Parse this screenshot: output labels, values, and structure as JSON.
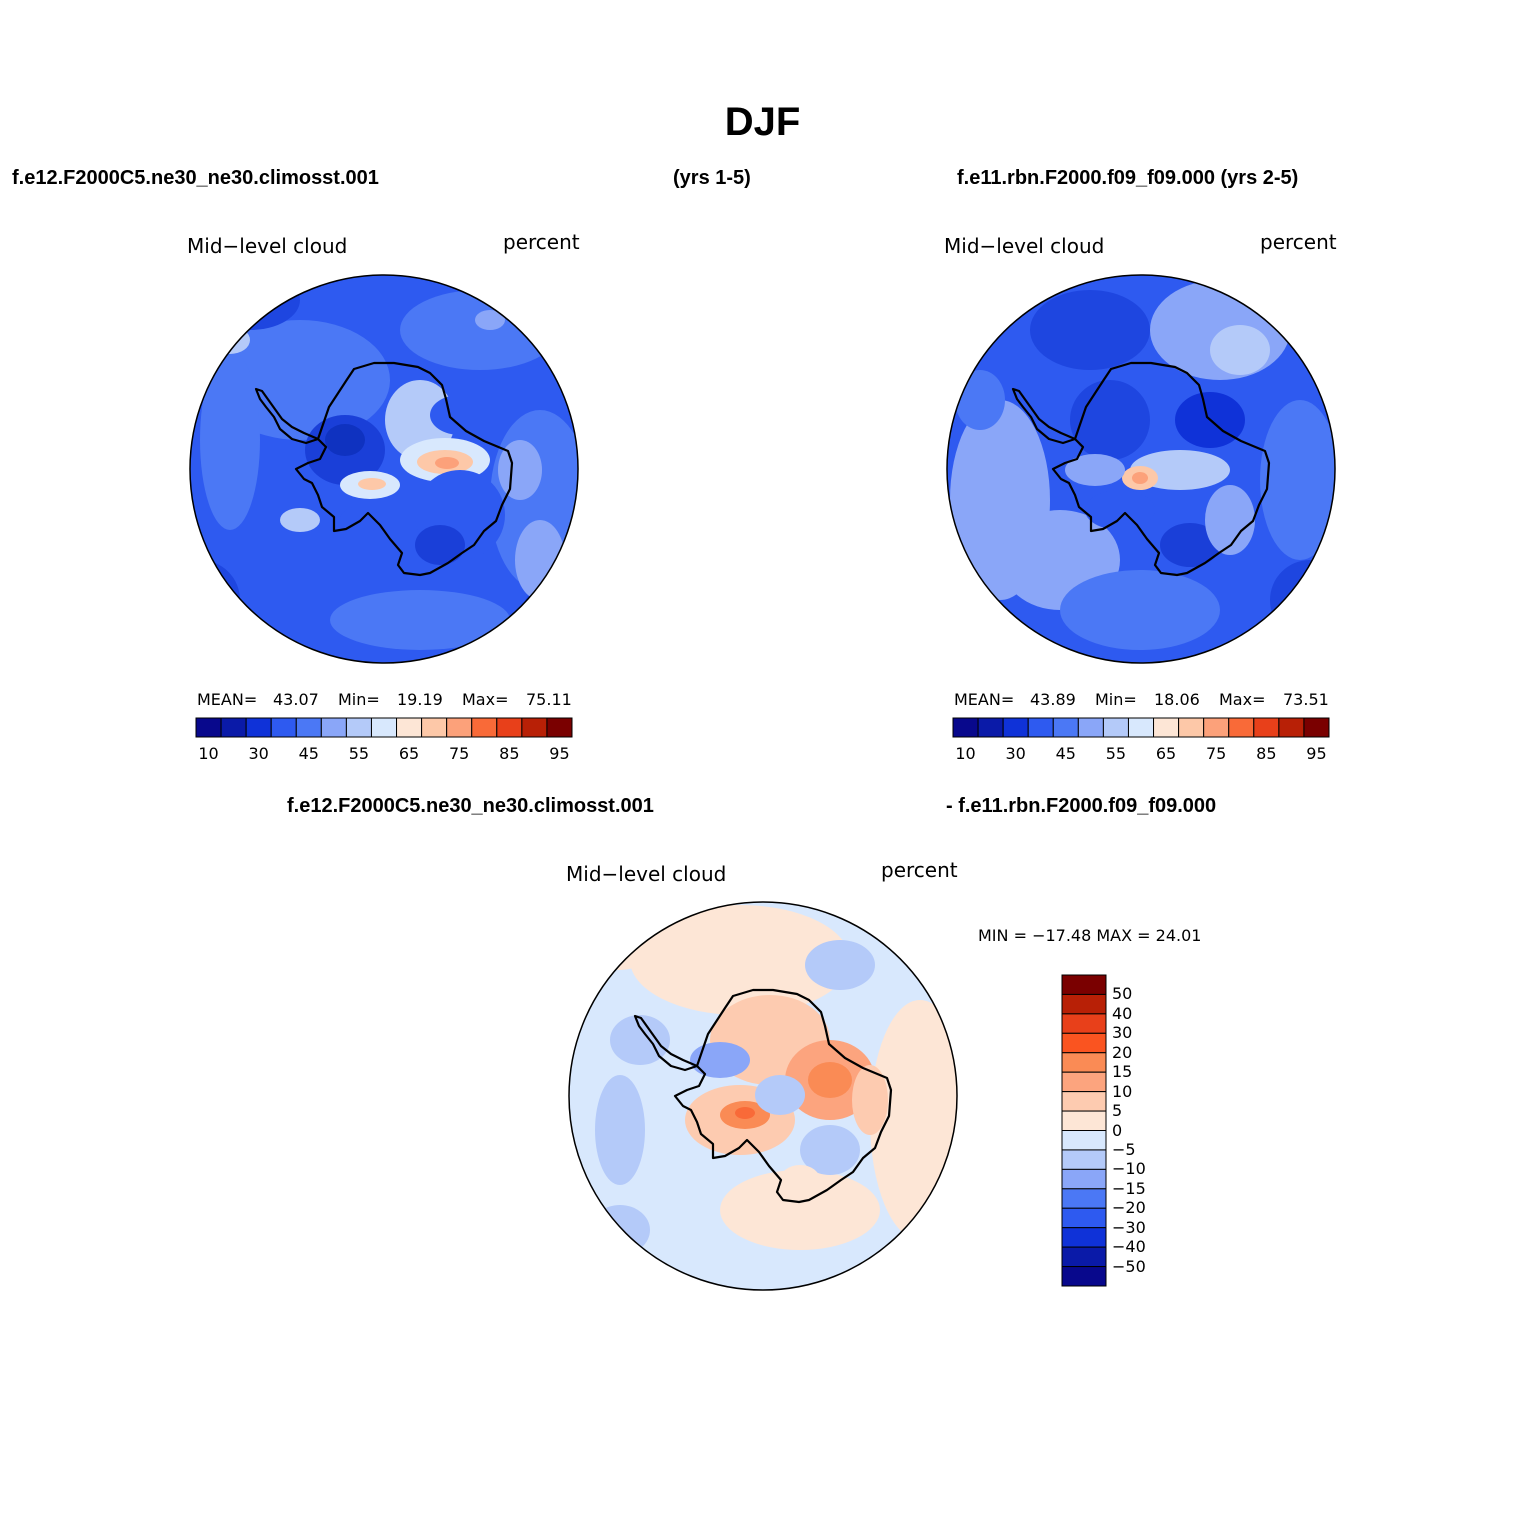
{
  "title": "DJF",
  "case1_label": "f.e12.F2000C5.ne30_ne30.climosst.001",
  "case1_years": "(yrs 1-5)",
  "case2_label": "f.e11.rbn.F2000.f09_f09.000 (yrs 2-5)",
  "diff_label_a": "f.e12.F2000C5.ne30_ne30.climosst.001",
  "diff_label_b": "- f.e11.rbn.F2000.f09_f09.000",
  "panels": [
    {
      "variable": "Mid−level cloud",
      "units": "percent",
      "mean_label": "MEAN=",
      "mean": "43.07",
      "min_label": "Min=",
      "min": "19.19",
      "max_label": "Max=",
      "max": "75.11"
    },
    {
      "variable": "Mid−level cloud",
      "units": "percent",
      "mean_label": "MEAN=",
      "mean": "43.89",
      "min_label": "Min=",
      "min": "18.06",
      "max_label": "Max=",
      "max": "73.51"
    },
    {
      "variable": "Mid−level cloud",
      "units": "percent",
      "minmax_text": "MIN = −17.48 MAX =  24.01"
    }
  ],
  "colorbar_main": {
    "colors": [
      "#08088c",
      "#0a1aa8",
      "#0f32d8",
      "#2e5af0",
      "#4b78f5",
      "#8aa6f8",
      "#b4caf9",
      "#d8e8fd",
      "#fde6d6",
      "#fdc8a8",
      "#fca17a",
      "#f96a38",
      "#e8401a",
      "#b82006",
      "#7a0000"
    ],
    "tick_labels": [
      "10",
      "30",
      "45",
      "55",
      "65",
      "75",
      "85",
      "95"
    ]
  },
  "colorbar_diff": {
    "colors": [
      "#7a0000",
      "#b82006",
      "#e8401a",
      "#fa5420",
      "#fa8b55",
      "#fca47e",
      "#fdcbb0",
      "#fde6d6",
      "#d8e8fd",
      "#b4caf9",
      "#8aa6f8",
      "#4b78f5",
      "#2e5af0",
      "#0f32d8",
      "#0a1aa8",
      "#08088c"
    ],
    "tick_labels": [
      "50",
      "40",
      "30",
      "20",
      "15",
      "10",
      "5",
      "0",
      "−5",
      "−10",
      "−15",
      "−20",
      "−30",
      "−40",
      "−50"
    ]
  }
}
